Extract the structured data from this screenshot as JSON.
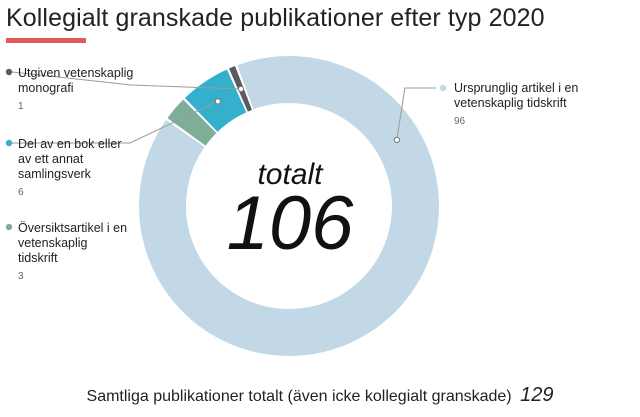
{
  "title": "Kollegialt granskade publikationer efter typ 2020",
  "colors": {
    "accent": "#e05a5a",
    "monografi": "#5b5b5e",
    "bok": "#34b0cc",
    "oversikt": "#7fae98",
    "artikel": "#c3d8e7"
  },
  "center": {
    "word": "totalt",
    "total": "106"
  },
  "footer": {
    "text": "Samtliga publikationer totalt (även icke kollegialt granskade)",
    "total": "129"
  },
  "chart_data": {
    "type": "pie",
    "donut": true,
    "title": "Kollegialt granskade publikationer efter typ 2020",
    "total": 106,
    "slices": [
      {
        "label": "Ursprunglig artikel i en vetenskaplig tidskrift",
        "value": 96,
        "color": "#c3d8e7"
      },
      {
        "label": "Översiktsartikel i en vetenskaplig tidskrift",
        "value": 3,
        "color": "#7fae98"
      },
      {
        "label": "Del av en bok eller av ett annat samlingsverk",
        "value": 6,
        "color": "#34b0cc"
      },
      {
        "label": "Utgiven vetenskaplig monografi",
        "value": 1,
        "color": "#5b5b5e"
      }
    ]
  },
  "labels": {
    "artikel": {
      "text": "Ursprunglig artikel i en vetenskaplig tidskrift",
      "value": "96"
    },
    "monografi": {
      "text": "Utgiven vetenskaplig monografi",
      "value": "1"
    },
    "bok": {
      "text": "Del av en bok eller av ett annat samlingsverk",
      "value": "6"
    },
    "oversikt": {
      "text": "Översiktsartikel i en vetenskaplig tidskrift",
      "value": "3"
    }
  }
}
